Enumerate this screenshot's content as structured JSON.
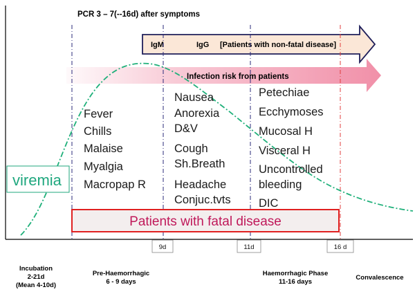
{
  "header": {
    "pcr_text": "PCR 3 – 7(--16d)  after symptoms"
  },
  "antibody_arrow": {
    "igm": "IgM",
    "igg": "IgG",
    "nonfatal": "[Patients with non-fatal disease]",
    "fill": "#fbe7d7",
    "stroke": "#1f1f5a"
  },
  "infection_arrow": {
    "label": "Infection risk from patients",
    "color": "#f08aa4"
  },
  "viremia": {
    "label": "viremia",
    "color": "#1fa77e"
  },
  "symptoms": {
    "pre_haemorrhagic": [
      "Fever",
      "Chills",
      "Malaise",
      "Myalgia",
      "Macropap R"
    ],
    "early_mid": [
      "Nausea",
      "Anorexia",
      "D&V"
    ],
    "late_mid": [
      "Cough",
      "Sh.Breath"
    ],
    "neuro": [
      "Headache",
      "Conjuc.tvts"
    ],
    "haemorrhagic": [
      "Petechiae",
      "Ecchymoses",
      "Mucosal H",
      "Visceral H",
      "Uncontrolled",
      "bleeding",
      "DIC"
    ]
  },
  "fatal_box": {
    "label": "Patients with fatal disease",
    "color": "#c0195a",
    "border": "#e02020",
    "fill": "#f3eeee"
  },
  "day_markers": [
    "9d",
    "11d",
    "16 d"
  ],
  "phases": {
    "incubation": [
      "Incubation",
      "2-21d",
      "(Mean 4-10d)"
    ],
    "pre_haemorrhagic": [
      "Pre-Haemorrhagic",
      "6 - 9 days"
    ],
    "haemorrhagic": [
      "Haemorrhagic Phase",
      "11-16 days"
    ],
    "convalescence": [
      "Convalescence"
    ]
  },
  "colors": {
    "divider": "#2a2a7a",
    "red_divider": "#e03c3c",
    "curve": "#1fb07a"
  }
}
